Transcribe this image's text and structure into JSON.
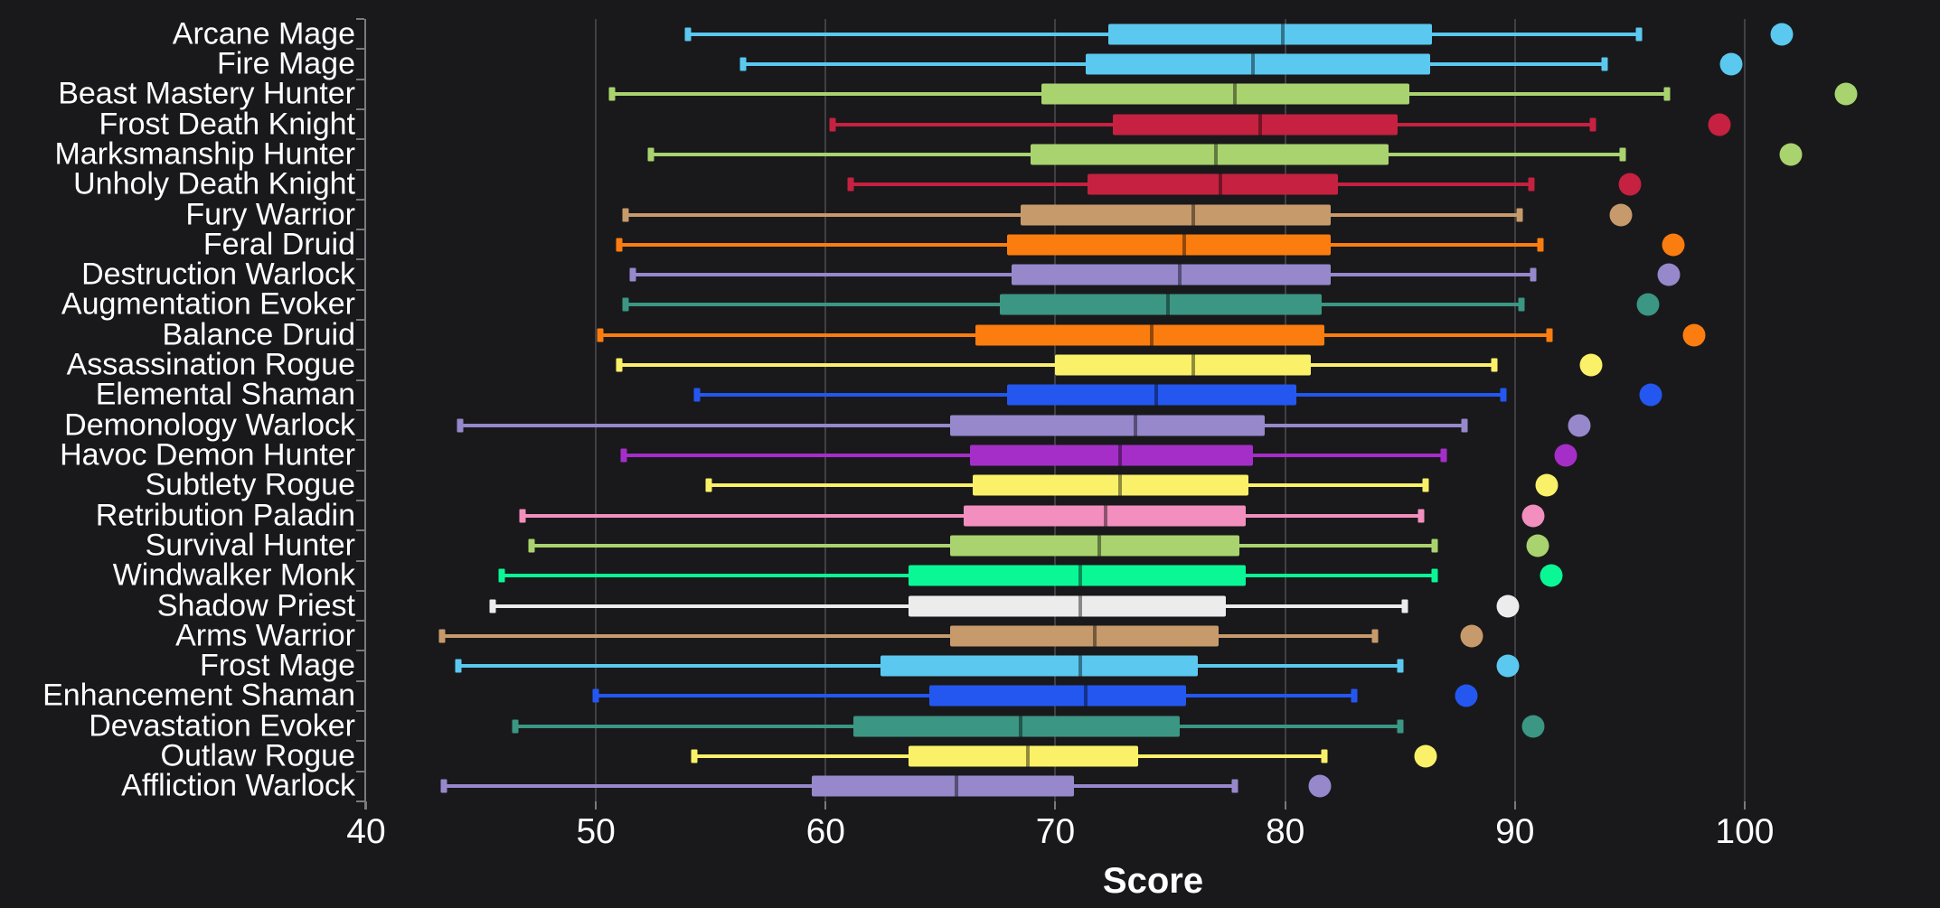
{
  "colors": {
    "background": "#19191b",
    "gridline": "#404044",
    "axis": "#7a7a7e",
    "text": "#ffffff",
    "classes": {
      "mage": "#5bc8ef",
      "hunter": "#a9d36e",
      "death_knight": "#c62140",
      "warrior": "#c79a6c",
      "druid": "#fb7d0f",
      "warlock": "#9788cc",
      "evoker": "#3b9683",
      "rogue": "#faf168",
      "shaman": "#2457f0",
      "demon_hunter": "#a52ec8",
      "paladin": "#f28fbe",
      "monk": "#0af795",
      "priest": "#ececec"
    }
  },
  "chart_data": {
    "type": "box",
    "title": "",
    "xlabel": "Score",
    "ylabel": "",
    "xlim": [
      40,
      108.5
    ],
    "x_ticks": [
      40,
      50,
      60,
      70,
      80,
      90,
      100
    ],
    "grid": "vertical",
    "legend": "none",
    "orientation": "horizontal",
    "series": [
      {
        "label": "Arcane Mage",
        "class": "mage",
        "min": 54.0,
        "q1": 72.3,
        "median": 79.9,
        "q3": 86.4,
        "max": 95.4,
        "point": 101.6
      },
      {
        "label": "Fire Mage",
        "class": "mage",
        "min": 56.4,
        "q1": 71.3,
        "median": 78.6,
        "q3": 86.3,
        "max": 93.9,
        "point": 99.4
      },
      {
        "label": "Beast Mastery Hunter",
        "class": "hunter",
        "min": 50.7,
        "q1": 69.4,
        "median": 77.8,
        "q3": 85.4,
        "max": 96.6,
        "point": 104.4
      },
      {
        "label": "Frost Death Knight",
        "class": "death_knight",
        "min": 60.3,
        "q1": 72.5,
        "median": 78.9,
        "q3": 84.9,
        "max": 93.4,
        "point": 98.9
      },
      {
        "label": "Marksmanship Hunter",
        "class": "hunter",
        "min": 52.4,
        "q1": 68.9,
        "median": 77.0,
        "q3": 84.5,
        "max": 94.7,
        "point": 102.0
      },
      {
        "label": "Unholy Death Knight",
        "class": "death_knight",
        "min": 61.1,
        "q1": 71.4,
        "median": 77.2,
        "q3": 82.3,
        "max": 90.7,
        "point": 95.0
      },
      {
        "label": "Fury Warrior",
        "class": "warrior",
        "min": 51.3,
        "q1": 68.5,
        "median": 76.0,
        "q3": 82.0,
        "max": 90.2,
        "point": 94.6
      },
      {
        "label": "Feral Druid",
        "class": "druid",
        "min": 51.0,
        "q1": 67.9,
        "median": 75.6,
        "q3": 82.0,
        "max": 91.1,
        "point": 96.9
      },
      {
        "label": "Destruction Warlock",
        "class": "warlock",
        "min": 51.6,
        "q1": 68.1,
        "median": 75.4,
        "q3": 82.0,
        "max": 90.8,
        "point": 96.7
      },
      {
        "label": "Augmentation Evoker",
        "class": "evoker",
        "min": 51.3,
        "q1": 67.6,
        "median": 74.9,
        "q3": 81.6,
        "max": 90.3,
        "point": 95.8
      },
      {
        "label": "Balance Druid",
        "class": "druid",
        "min": 50.2,
        "q1": 66.5,
        "median": 74.2,
        "q3": 81.7,
        "max": 91.5,
        "point": 97.8
      },
      {
        "label": "Assassination Rogue",
        "class": "rogue",
        "min": 51.0,
        "q1": 70.0,
        "median": 76.0,
        "q3": 81.1,
        "max": 89.1,
        "point": 93.3
      },
      {
        "label": "Elemental Shaman",
        "class": "shaman",
        "min": 54.4,
        "q1": 67.9,
        "median": 74.4,
        "q3": 80.5,
        "max": 89.5,
        "point": 95.9
      },
      {
        "label": "Demonology Warlock",
        "class": "warlock",
        "min": 44.1,
        "q1": 65.4,
        "median": 73.5,
        "q3": 79.1,
        "max": 87.8,
        "point": 92.8
      },
      {
        "label": "Havoc Demon Hunter",
        "class": "demon_hunter",
        "min": 51.2,
        "q1": 66.3,
        "median": 72.8,
        "q3": 78.6,
        "max": 86.9,
        "point": 92.2
      },
      {
        "label": "Subtlety Rogue",
        "class": "rogue",
        "min": 54.9,
        "q1": 66.4,
        "median": 72.8,
        "q3": 78.4,
        "max": 86.1,
        "point": 91.4
      },
      {
        "label": "Retribution Paladin",
        "class": "paladin",
        "min": 46.8,
        "q1": 66.0,
        "median": 72.2,
        "q3": 78.3,
        "max": 85.9,
        "point": 90.8
      },
      {
        "label": "Survival Hunter",
        "class": "hunter",
        "min": 47.2,
        "q1": 65.4,
        "median": 71.9,
        "q3": 78.0,
        "max": 86.5,
        "point": 91.0
      },
      {
        "label": "Windwalker Monk",
        "class": "monk",
        "min": 45.9,
        "q1": 63.6,
        "median": 71.1,
        "q3": 78.3,
        "max": 86.5,
        "point": 91.6
      },
      {
        "label": "Shadow Priest",
        "class": "priest",
        "min": 45.5,
        "q1": 63.6,
        "median": 71.1,
        "q3": 77.4,
        "max": 85.2,
        "point": 89.7
      },
      {
        "label": "Arms Warrior",
        "class": "warrior",
        "min": 43.3,
        "q1": 65.4,
        "median": 71.7,
        "q3": 77.1,
        "max": 83.9,
        "point": 88.1
      },
      {
        "label": "Frost Mage",
        "class": "mage",
        "min": 44.0,
        "q1": 62.4,
        "median": 71.1,
        "q3": 76.2,
        "max": 85.0,
        "point": 89.7
      },
      {
        "label": "Enhancement Shaman",
        "class": "shaman",
        "min": 50.0,
        "q1": 64.5,
        "median": 71.3,
        "q3": 75.7,
        "max": 83.0,
        "point": 87.9
      },
      {
        "label": "Devastation Evoker",
        "class": "evoker",
        "min": 46.5,
        "q1": 61.2,
        "median": 68.5,
        "q3": 75.4,
        "max": 85.0,
        "point": 90.8
      },
      {
        "label": "Outlaw Rogue",
        "class": "rogue",
        "min": 54.3,
        "q1": 63.6,
        "median": 68.8,
        "q3": 73.6,
        "max": 81.7,
        "point": 86.1
      },
      {
        "label": "Affliction Warlock",
        "class": "warlock",
        "min": 43.4,
        "q1": 59.4,
        "median": 65.7,
        "q3": 70.8,
        "max": 77.8,
        "point": 81.5
      }
    ]
  }
}
